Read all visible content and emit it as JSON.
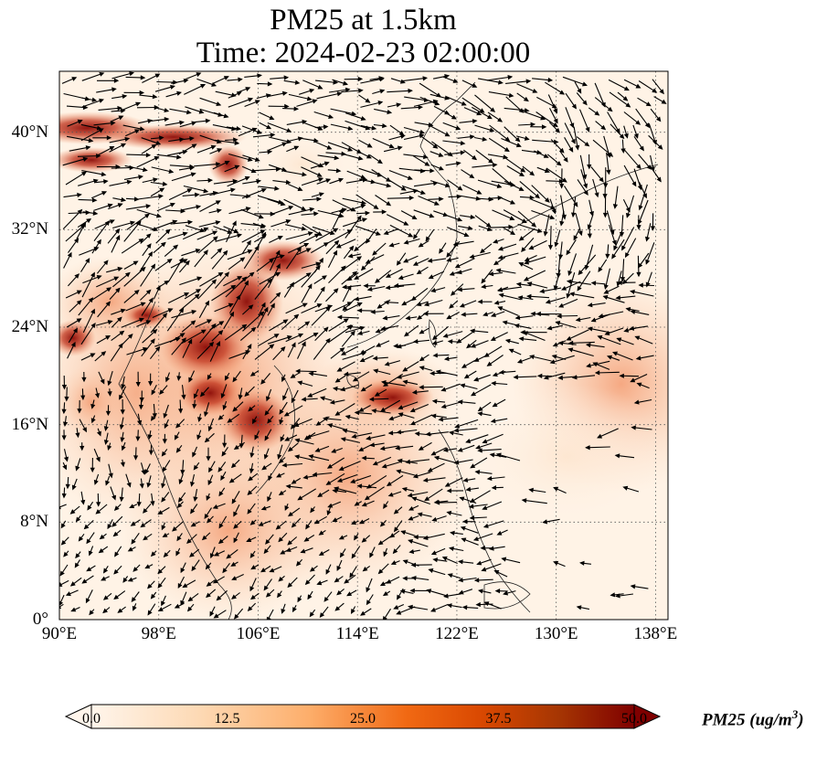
{
  "title": {
    "line1": "PM25 at 1.5km",
    "line2": "Time: 2024-02-23 02:00:00"
  },
  "map": {
    "projection": "PlateCarree",
    "lon_range": [
      90,
      139
    ],
    "lat_range": [
      0,
      45
    ],
    "gridlines": "dotted",
    "lat_labels": [
      {
        "value": 0,
        "label": "0°"
      },
      {
        "value": 8,
        "label": "8°N"
      },
      {
        "value": 16,
        "label": "16°N"
      },
      {
        "value": 24,
        "label": "24°N"
      },
      {
        "value": 32,
        "label": "32°N"
      },
      {
        "value": 40,
        "label": "40°N"
      }
    ],
    "lon_labels": [
      {
        "value": 90,
        "label": "90°E"
      },
      {
        "value": 98,
        "label": "98°E"
      },
      {
        "value": 106,
        "label": "106°E"
      },
      {
        "value": 114,
        "label": "114°E"
      },
      {
        "value": 122,
        "label": "122°E"
      },
      {
        "value": 130,
        "label": "130°E"
      },
      {
        "value": 138,
        "label": "138°E"
      }
    ],
    "field": "PM25",
    "overlay": "wind vectors"
  },
  "colorbar": {
    "min": 0.0,
    "max": 50.0,
    "ticks": [
      "0.0",
      "12.5",
      "25.0",
      "37.5",
      "50.0"
    ],
    "label_text": "PM25 (ug/m",
    "label_sup": "3",
    "label_close": ")",
    "colormap": [
      "#fff5eb",
      "#fdd9b4",
      "#fdae6b",
      "#f16913",
      "#d94801",
      "#a63603",
      "#7f0000"
    ]
  }
}
